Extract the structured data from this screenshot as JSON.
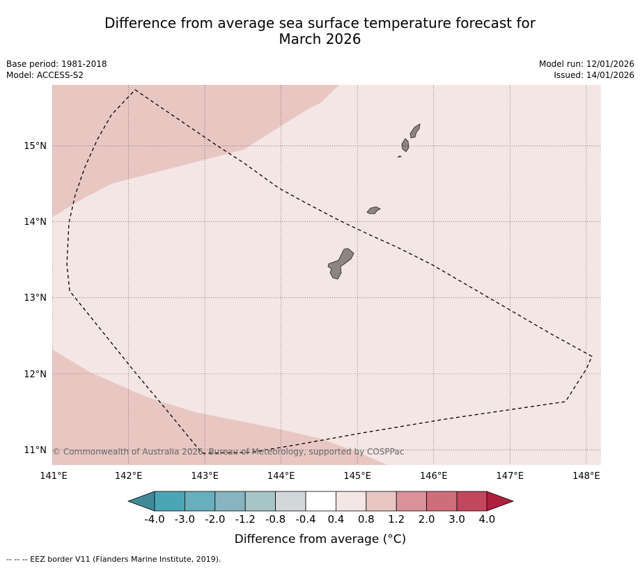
{
  "title": {
    "line1": "Difference from average sea surface temperature forecast for",
    "line2": "March 2026"
  },
  "meta": {
    "base_period": "Base period: 1981-2018",
    "model": "Model: ACCESS-S2",
    "model_run": "Model run: 12/01/2026",
    "issued": "Issued: 14/01/2026"
  },
  "map": {
    "lon_ticks": [
      "141°E",
      "142°E",
      "143°E",
      "144°E",
      "145°E",
      "146°E",
      "147°E",
      "148°E"
    ],
    "lat_ticks": [
      "15°N",
      "14°N",
      "13°N",
      "12°N",
      "11°N"
    ],
    "lon_range": [
      141,
      148.2
    ],
    "lat_range": [
      10.8,
      15.8
    ],
    "copyright": "© Commonwealth of Australia 2026, Bureau of Meteorology, supported by COSPPac",
    "regions": {
      "warm_0_4_to_0_8": "#f4e6e5",
      "warm_0_8_to_1_2": "#e8c7c3"
    },
    "land_color": "#8e8483",
    "eez_label": "EEZ border V11"
  },
  "colorbar": {
    "colors": [
      "#3f8a98",
      "#4aa6b5",
      "#69aebd",
      "#88b4c1",
      "#a7c5c9",
      "#d2d8da",
      "#ffffff",
      "#f4e6e5",
      "#e8c7c3",
      "#d9929a",
      "#cf6e7a",
      "#c2475c",
      "#b01f3e"
    ],
    "labels": [
      "-4.0",
      "-3.0",
      "-2.0",
      "-1.2",
      "-0.8",
      "-0.4",
      "0.4",
      "0.8",
      "1.2",
      "2.0",
      "3.0",
      "4.0"
    ],
    "title": "Difference from average (°C)"
  },
  "footnote": "--  --  -- EEZ border V11 (Flanders Marine Institute, 2019)."
}
